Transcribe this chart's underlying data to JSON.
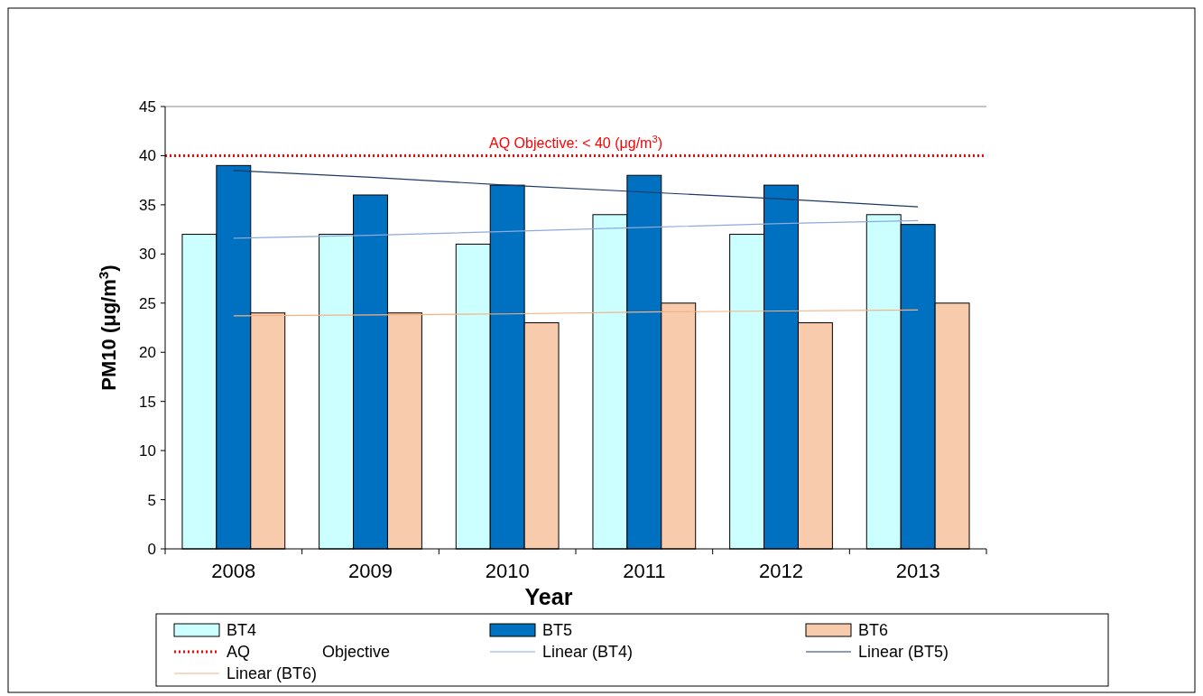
{
  "chart_data": {
    "type": "bar",
    "xlabel": "Year",
    "ylabel": "PM10 (μg/m$^{3}$)",
    "categories": [
      "2008",
      "2009",
      "2010",
      "2011",
      "2012",
      "2013"
    ],
    "series": [
      {
        "name": "BT4",
        "color": "#ccffff",
        "values": [
          32,
          32,
          31,
          34,
          32,
          34
        ]
      },
      {
        "name": "BT5",
        "color": "#0070c0",
        "values": [
          39,
          36,
          37,
          38,
          37,
          33
        ]
      },
      {
        "name": "BT6",
        "color": "#f8cbad",
        "values": [
          24,
          24,
          23,
          25,
          23,
          25
        ]
      },
      {
        "name": "Linear (BT4)",
        "type": "line",
        "color": "#8eaadb",
        "values": [
          31.6,
          31.9,
          32.3,
          32.7,
          33.1,
          33.4
        ]
      },
      {
        "name": "Linear (BT5)",
        "type": "line",
        "color": "#1f3864",
        "values": [
          38.5,
          37.8,
          37.0,
          36.3,
          35.6,
          34.8
        ]
      },
      {
        "name": "Linear (BT6)",
        "type": "line",
        "color": "#f4b183",
        "values": [
          23.7,
          23.8,
          23.9,
          24.1,
          24.2,
          24.3
        ]
      }
    ],
    "ylim": [
      0,
      45
    ],
    "yticks": [
      0,
      5,
      10,
      15,
      20,
      25,
      30,
      35,
      40,
      45
    ],
    "grid": false,
    "legend": "bottom",
    "ref_lines": [
      {
        "axis": "y",
        "value": 40,
        "label": "AQ                Objective",
        "color": "#ff0000",
        "line_style": "dotted"
      }
    ],
    "annotations": [
      {
        "text": "AQ Objective:  < 40 (μg/m$^{3}$)",
        "y": 40
      }
    ]
  }
}
